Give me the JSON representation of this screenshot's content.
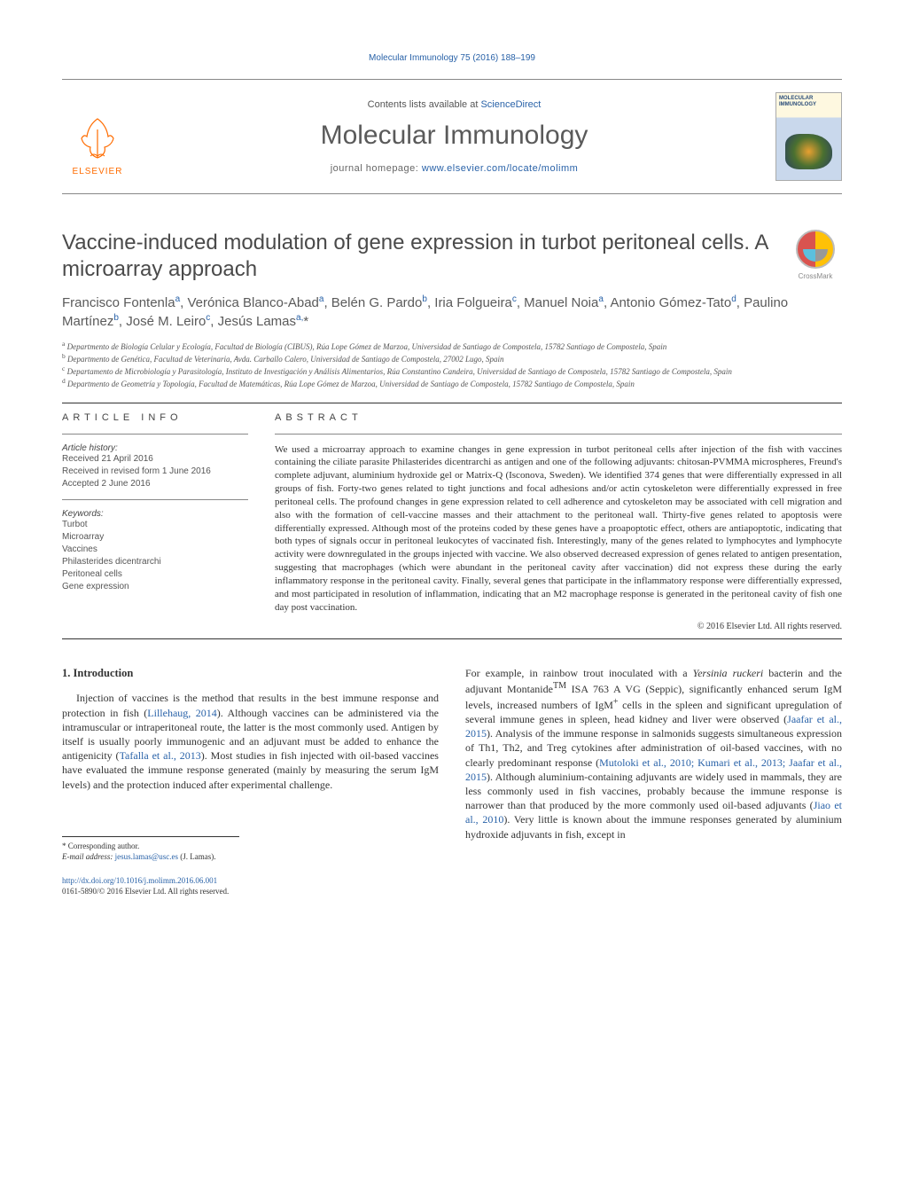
{
  "header": {
    "citation": "Molecular Immunology 75 (2016) 188–199",
    "contents_prefix": "Contents lists available at ",
    "contents_link": "ScienceDirect",
    "journal_title": "Molecular Immunology",
    "homepage_prefix": "journal homepage: ",
    "homepage_url": "www.elsevier.com/locate/molimm",
    "publisher": "ELSEVIER",
    "cover_title": "MOLECULAR IMMUNOLOGY",
    "crossmark": "CrossMark"
  },
  "article": {
    "title": "Vaccine-induced modulation of gene expression in turbot peritoneal cells. A microarray approach",
    "authors_html": "Francisco Fontenla<sup>a</sup>, Verónica Blanco-Abad<sup>a</sup>, Belén G. Pardo<sup>b</sup>, Iria Folgueira<sup>c</sup>, Manuel Noia<sup>a</sup>, Antonio Gómez-Tato<sup>d</sup>, Paulino Martínez<sup>b</sup>, José M. Leiro<sup>c</sup>, Jesús Lamas<sup>a,</sup>*",
    "affiliations": [
      {
        "sup": "a",
        "text": "Departmento de Biología Celular y Ecología, Facultad de Biología (CIBUS), Rúa Lope Gómez de Marzoa, Universidad de Santiago de Compostela, 15782 Santiago de Compostela, Spain"
      },
      {
        "sup": "b",
        "text": "Departmento de Genética, Facultad de Veterinaria, Avda. Carballo Calero, Universidad de Santiago de Compostela, 27002 Lugo, Spain"
      },
      {
        "sup": "c",
        "text": "Departamento de Microbiología y Parasitología, Instituto de Investigación y Análisis Alimentarios, Rúa Constantino Candeira, Universidad de Santiago de Compostela, 15782 Santiago de Compostela, Spain"
      },
      {
        "sup": "d",
        "text": "Departmento de Geometría y Topología, Facultad de Matemáticas, Rúa Lope Gómez de Marzoa, Universidad de Santiago de Compostela, 15782 Santiago de Compostela, Spain"
      }
    ]
  },
  "info": {
    "heading": "article info",
    "history_label": "Article history:",
    "history": [
      "Received 21 April 2016",
      "Received in revised form 1 June 2016",
      "Accepted 2 June 2016"
    ],
    "keywords_label": "Keywords:",
    "keywords": [
      "Turbot",
      "Microarray",
      "Vaccines",
      "Philasterides dicentrarchi",
      "Peritoneal cells",
      "Gene expression"
    ]
  },
  "abstract": {
    "heading": "abstract",
    "text": "We used a microarray approach to examine changes in gene expression in turbot peritoneal cells after injection of the fish with vaccines containing the ciliate parasite Philasterides dicentrarchi as antigen and one of the following adjuvants: chitosan-PVMMA microspheres, Freund's complete adjuvant, aluminium hydroxide gel or Matrix-Q (Isconova, Sweden). We identified 374 genes that were differentially expressed in all groups of fish. Forty-two genes related to tight junctions and focal adhesions and/or actin cytoskeleton were differentially expressed in free peritoneal cells. The profound changes in gene expression related to cell adherence and cytoskeleton may be associated with cell migration and also with the formation of cell-vaccine masses and their attachment to the peritoneal wall. Thirty-five genes related to apoptosis were differentially expressed. Although most of the proteins coded by these genes have a proapoptotic effect, others are antiapoptotic, indicating that both types of signals occur in peritoneal leukocytes of vaccinated fish. Interestingly, many of the genes related to lymphocytes and lymphocyte activity were downregulated in the groups injected with vaccine. We also observed decreased expression of genes related to antigen presentation, suggesting that macrophages (which were abundant in the peritoneal cavity after vaccination) did not express these during the early inflammatory response in the peritoneal cavity. Finally, several genes that participate in the inflammatory response were differentially expressed, and most participated in resolution of inflammation, indicating that an M2 macrophage response is generated in the peritoneal cavity of fish one day post vaccination.",
    "copyright": "© 2016 Elsevier Ltd. All rights reserved."
  },
  "body": {
    "section_heading": "1. Introduction",
    "col1_html": "Injection of vaccines is the method that results in the best immune response and protection in fish (<span class=\"ref\">Lillehaug, 2014</span>). Although vaccines can be administered via the intramuscular or intraperitoneal route, the latter is the most commonly used. Antigen by itself is usually poorly immunogenic and an adjuvant must be added to enhance the antigenicity (<span class=\"ref\">Tafalla et al., 2013</span>). Most studies in fish injected with oil-based vaccines have evaluated the immune response generated (mainly by measuring the serum IgM levels) and the protection induced after experimental challenge.",
    "col2_html": "For example, in rainbow trout inoculated with a <i>Yersinia ruckeri</i> bacterin and the adjuvant Montanide<sup>TM</sup> ISA 763 A VG (Seppic), significantly enhanced serum IgM levels, increased numbers of IgM<sup>+</sup> cells in the spleen and significant upregulation of several immune genes in spleen, head kidney and liver were observed (<span class=\"ref\">Jaafar et al., 2015</span>). Analysis of the immune response in salmonids suggests simultaneous expression of Th1, Th2, and Treg cytokines after administration of oil-based vaccines, with no clearly predominant response (<span class=\"ref\">Mutoloki et al., 2010; Kumari et al., 2013; Jaafar et al., 2015</span>). Although aluminium-containing adjuvants are widely used in mammals, they are less commonly used in fish vaccines, probably because the immune response is narrower than that produced by the more commonly used oil-based adjuvants (<span class=\"ref\">Jiao et al., 2010</span>). Very little is known about the immune responses generated by aluminium hydroxide adjuvants in fish, except in"
  },
  "footer": {
    "corr_label": "* Corresponding author.",
    "email_label": "E-mail address: ",
    "email": "jesus.lamas@usc.es",
    "email_suffix": " (J. Lamas).",
    "doi": "http://dx.doi.org/10.1016/j.molimm.2016.06.001",
    "issn_line": "0161-5890/© 2016 Elsevier Ltd. All rights reserved."
  },
  "colors": {
    "link": "#2962a8",
    "elsevier_orange": "#ff6c00",
    "text_gray": "#5a5a5a",
    "rule": "#333333"
  },
  "typography": {
    "title_fontsize": 24,
    "journal_fontsize": 30,
    "author_fontsize": 15,
    "body_fontsize": 12,
    "abstract_fontsize": 11,
    "affil_fontsize": 9
  }
}
